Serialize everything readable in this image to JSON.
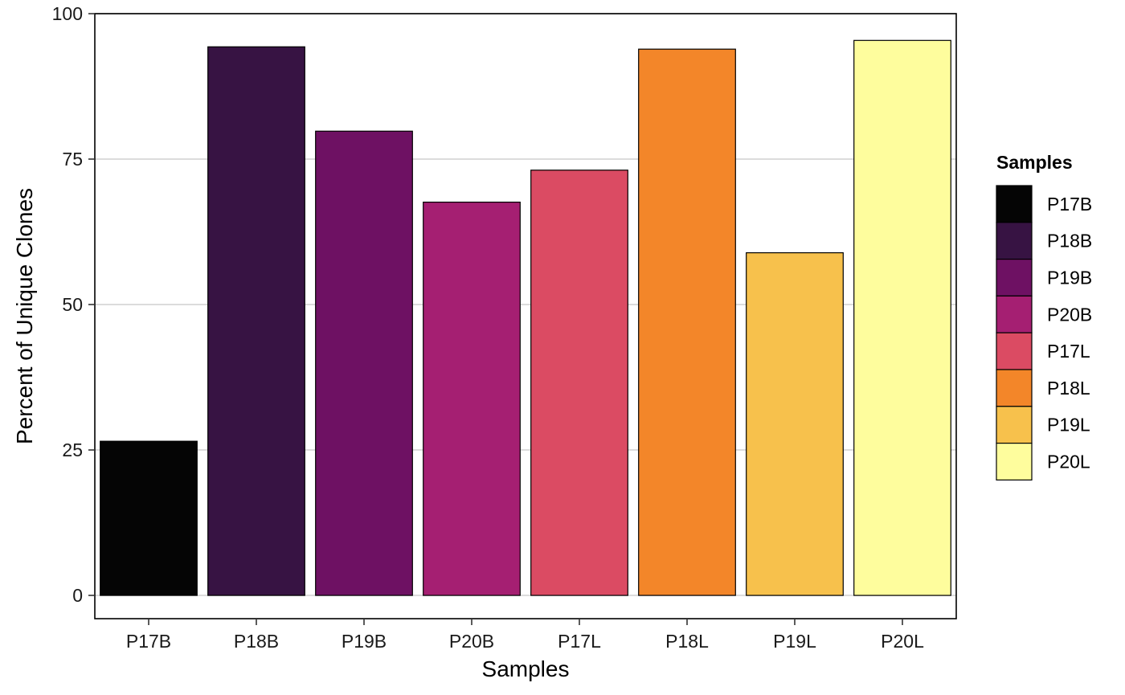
{
  "chart_data": {
    "type": "bar",
    "title": "",
    "xlabel": "Samples",
    "ylabel": "Percent of Unique Clones",
    "categories": [
      "P17B",
      "P18B",
      "P19B",
      "P20B",
      "P17L",
      "P18L",
      "P19L",
      "P20L"
    ],
    "values": [
      26.5,
      94.3,
      79.8,
      67.6,
      73.1,
      93.9,
      58.9,
      95.4
    ],
    "colors": [
      "#050505",
      "#371343",
      "#6E1163",
      "#A51F72",
      "#DB4B63",
      "#F38629",
      "#F7C14C",
      "#FEFD9D"
    ],
    "ylim": [
      -4,
      100
    ],
    "yticks": [
      0,
      25,
      50,
      75,
      100
    ],
    "ytick_labels": [
      "0",
      "25",
      "50",
      "75",
      "100"
    ],
    "grid": "horizontal major",
    "legend": {
      "title": "Samples",
      "position": "right",
      "items": [
        "P17B",
        "P18B",
        "P19B",
        "P20B",
        "P17L",
        "P18L",
        "P19L",
        "P20L"
      ]
    }
  }
}
